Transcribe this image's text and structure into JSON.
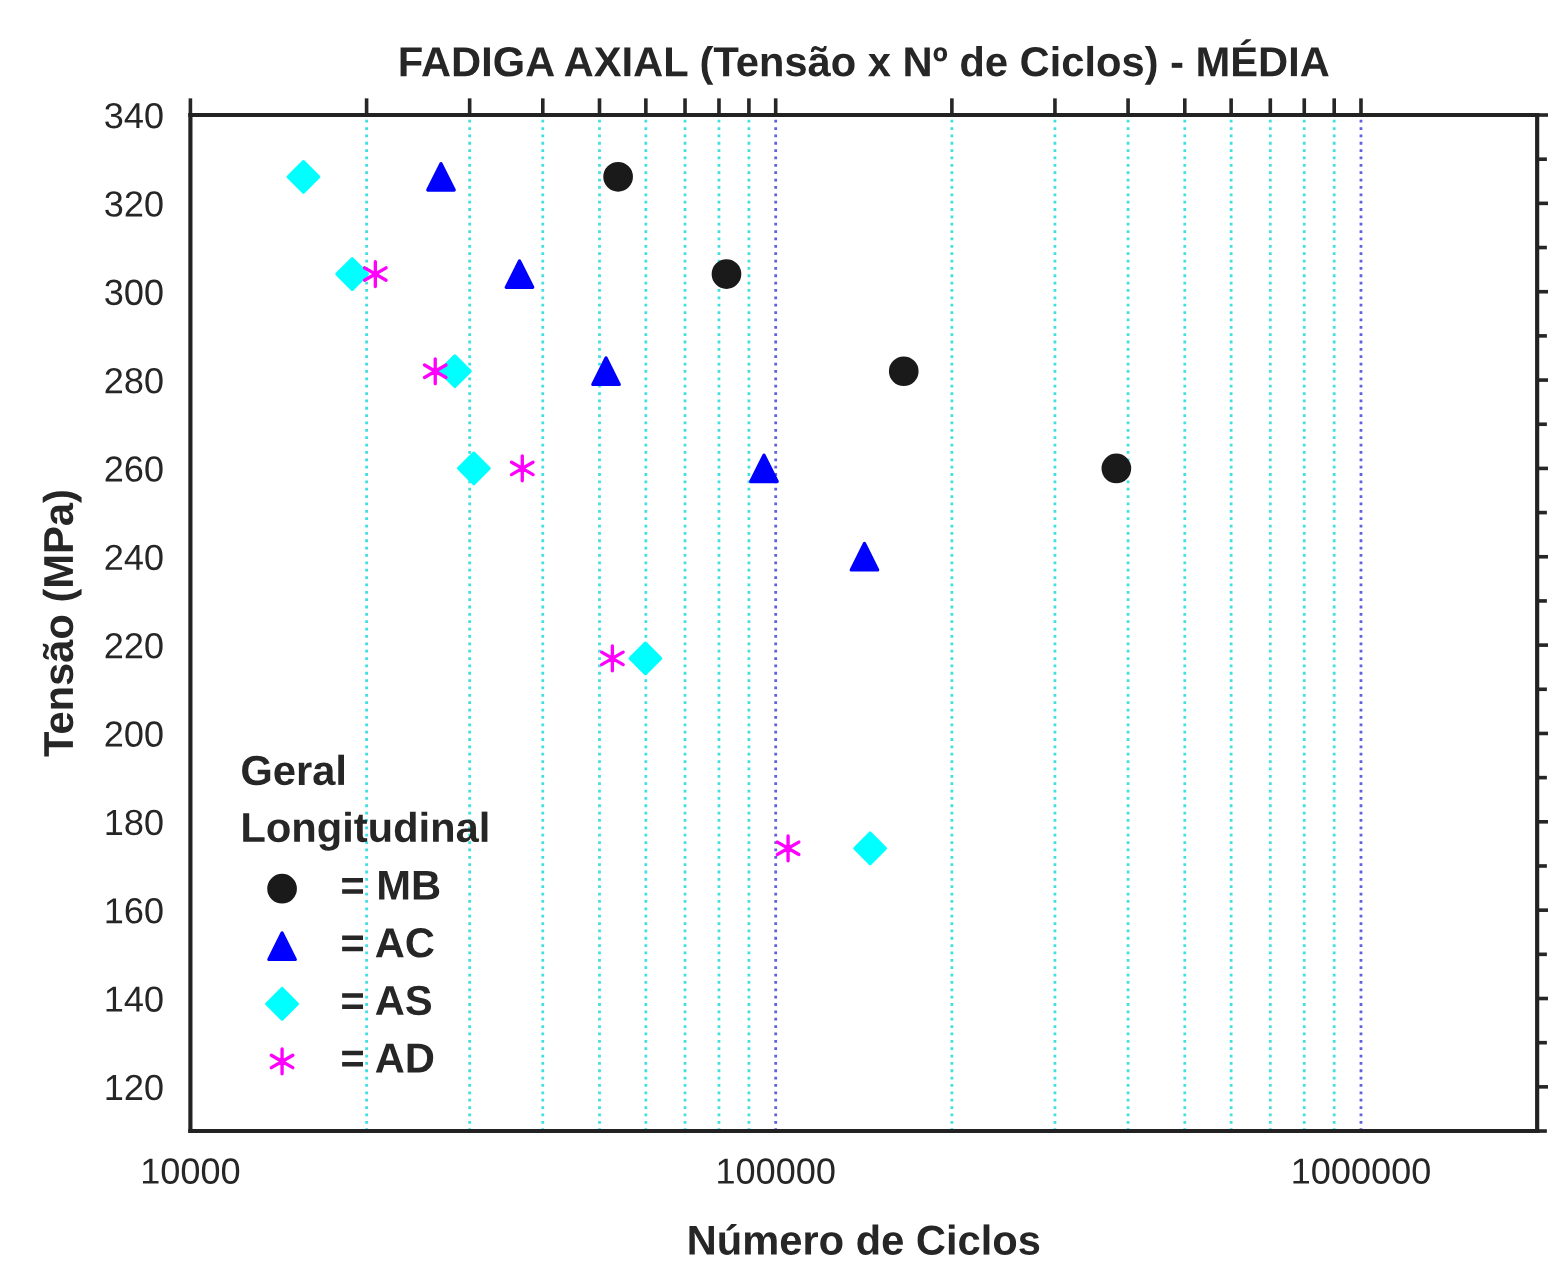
{
  "chart_data": {
    "type": "scatter",
    "title": "FADIGA AXIAL (Tensão x Nº de Ciclos) - MÉDIA",
    "xlabel": "Número de Ciclos",
    "ylabel": "Tensão (MPa)",
    "legend_title": "Geral\nLongitudinal",
    "log": "x",
    "xlim": [
      10000,
      2000000
    ],
    "xticks": [
      10000,
      {
        "value": 20000,
        "label": null
      },
      {
        "value": 30000,
        "label": null
      },
      {
        "value": 40000,
        "label": null
      },
      {
        "value": 50000,
        "label": null
      },
      {
        "value": 60000,
        "label": null
      },
      {
        "value": 70000,
        "label": null
      },
      {
        "value": 80000,
        "label": null
      },
      {
        "value": 90000,
        "label": null
      },
      100000,
      {
        "value": 200000,
        "label": null
      },
      {
        "value": 300000,
        "label": null
      },
      {
        "value": 400000,
        "label": null
      },
      {
        "value": 500000,
        "label": null
      },
      {
        "value": 600000,
        "label": null
      },
      {
        "value": 700000,
        "label": null
      },
      {
        "value": 800000,
        "label": null
      },
      {
        "value": 900000,
        "label": null
      },
      1000000
    ],
    "ylim": [
      110,
      340
    ],
    "yticks": [
      120,
      140,
      160,
      180,
      200,
      220,
      240,
      260,
      280,
      300,
      320,
      340
    ],
    "grid": "x",
    "legend": "bottom left",
    "series": [
      {
        "name": "= MB",
        "color": "#1a1a1a",
        "marker": "circle",
        "x": [
          53800,
          82400,
          165500,
          382000
        ],
        "values": [
          326,
          304,
          282,
          260
        ]
      },
      {
        "name": "= AC",
        "color": "#0000ff",
        "marker": "triangle",
        "x": [
          26800,
          36500,
          51300,
          95500,
          141800
        ],
        "values": [
          326,
          304,
          282,
          260,
          240
        ]
      },
      {
        "name": "= AS",
        "color": "#00ffff",
        "marker": "diamond",
        "x": [
          15600,
          18900,
          28300,
          30500,
          59900,
          145000
        ],
        "values": [
          326,
          304,
          282,
          260,
          217,
          174
        ]
      },
      {
        "name": "= AD",
        "color": "#ff00ff",
        "marker": "cross",
        "x": [
          20700,
          26200,
          36900,
          52600,
          105000
        ],
        "values": [
          304,
          282,
          260,
          217,
          174
        ]
      }
    ]
  }
}
